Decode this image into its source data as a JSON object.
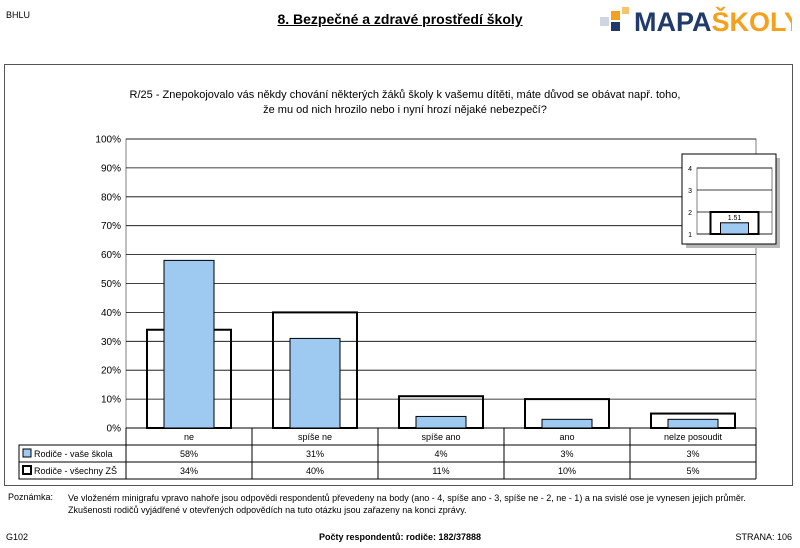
{
  "header": {
    "code": "BHLU",
    "title": "8. Bezpečné a zdravé prostředí školy",
    "logo_part1": "MAPA",
    "logo_part2": "ŠKOLY",
    "logo_colors": {
      "text": "#1f3a6b",
      "accent": "#f4a11d"
    }
  },
  "question": {
    "line1": "R/25 - Znepokojovalo vás někdy chování některých žáků školy k vašemu dítěti, máte důvod se obávat např. toho,",
    "line2": "že mu od nich hrozilo nebo i nyní hrozí nějaké nebezpečí?"
  },
  "chart_data": [
    {
      "type": "bar",
      "categories": [
        "ne",
        "spíše ne",
        "spíše ano",
        "ano",
        "nelze posoudit"
      ],
      "ylim": [
        0,
        100
      ],
      "yticks": [
        "0%",
        "10%",
        "20%",
        "30%",
        "40%",
        "50%",
        "60%",
        "70%",
        "80%",
        "90%",
        "100%"
      ],
      "series": [
        {
          "name": "Rodiče - vaše škola",
          "values": [
            58,
            31,
            4,
            3,
            3
          ],
          "labels": [
            "58%",
            "31%",
            "4%",
            "3%",
            "3%"
          ],
          "style": "filled",
          "color": "#9ec9f0"
        },
        {
          "name": "Rodiče - všechny ZŠ",
          "values": [
            34,
            40,
            11,
            10,
            5
          ],
          "labels": [
            "34%",
            "40%",
            "11%",
            "10%",
            "5%"
          ],
          "style": "outline",
          "color": "#000000"
        }
      ]
    },
    {
      "type": "bar",
      "ylim": [
        1,
        4
      ],
      "yticks": [
        "1",
        "2",
        "3",
        "4"
      ],
      "series": [
        {
          "name": "Rodiče - vaše škola",
          "values": [
            1.51
          ],
          "labels": [
            "1.51"
          ],
          "style": "filled",
          "color": "#9ec9f0"
        },
        {
          "name": "Rodiče - všechny ZŠ",
          "values": [
            2.0
          ],
          "style": "outline",
          "color": "#000000"
        }
      ]
    }
  ],
  "note": {
    "label": "Poznámka:",
    "line1": "Ve vloženém minigrafu vpravo nahoře jsou odpovědi respondentů převedeny na body (ano - 4, spíše ano - 3, spíše ne - 2, ne - 1) a na svislé ose je vynesen jejich průměr.",
    "line2": "Zkušenosti rodičů vyjádřené v otevřených odpovědích na tuto otázku jsou zařazeny na konci zprávy."
  },
  "footer": {
    "code": "G102",
    "respondents_label": "Počty respondentů:",
    "respondents_value": "rodiče: 182/37888",
    "page": "STRANA: 106"
  }
}
